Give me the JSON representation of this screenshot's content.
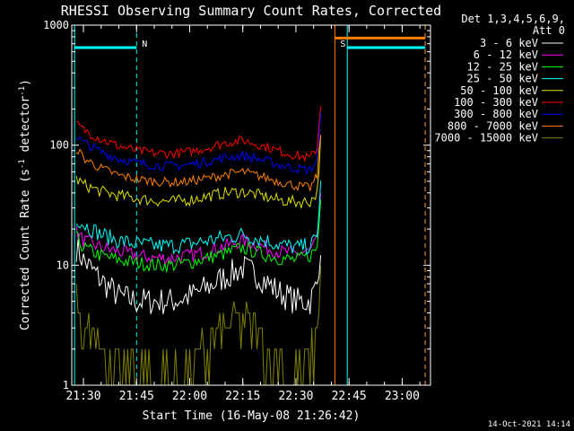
{
  "chart_data": {
    "type": "line",
    "title": "RHESSI Observing Summary Count Rates, Corrected",
    "xlabel": "Start Time (16-May-08 21:26:42)",
    "ylabel_main": "Corrected Count Rate (s",
    "ylabel_sup1": "-1",
    "ylabel_mid": " detector",
    "ylabel_sup2": "-1",
    "ylabel_end": ")",
    "y_scale": "log",
    "ylim": [
      1,
      1000
    ],
    "xlim": [
      "21:26:42",
      "23:08:00"
    ],
    "x_tick_labels": [
      "21:30",
      "21:45",
      "22:00",
      "22:15",
      "22:30",
      "22:45",
      "23:00"
    ],
    "y_tick_labels": [
      "1",
      "10",
      "100",
      "1000"
    ],
    "legend_header": [
      "Det 1,3,4,5,6,9,",
      "Att 0"
    ],
    "legend_placement": "right",
    "timestamp": "14-Oct-2021 14:14",
    "colors": {
      "axes": "#ffffff",
      "background": "#000000",
      "cyan": "#00ffff",
      "orange": "#ff8000"
    },
    "annotations": [
      {
        "text": "N",
        "time": "21:45",
        "color": "#00ffff"
      },
      {
        "text": "S",
        "time": "22:41",
        "color": "#ff8000"
      }
    ],
    "night_intervals": [
      {
        "start": "21:27:30",
        "end": "21:45",
        "level": 650,
        "color": "#00ffff"
      },
      {
        "start": "22:44:30",
        "end": "23:06:30",
        "level": 650,
        "color": "#00ffff"
      }
    ],
    "saa_interval": {
      "start": "22:41",
      "end": "23:06:30",
      "level": 780,
      "color": "#ff8000"
    },
    "series": [
      {
        "name": "3 - 6 keV",
        "color": "#ffffff",
        "x": [
          "21:28",
          "21:30",
          "21:35",
          "21:40",
          "21:45",
          "21:50",
          "21:55",
          "22:00",
          "22:05",
          "22:10",
          "22:15",
          "22:20",
          "22:25",
          "22:30",
          "22:34",
          "22:36",
          "22:37"
        ],
        "y": [
          14,
          11,
          7.5,
          5.5,
          5,
          5,
          5,
          5.5,
          6.5,
          8,
          9.5,
          8,
          6,
          5,
          5,
          7,
          15
        ]
      },
      {
        "name": "6 - 12 keV",
        "color": "#ff00ff",
        "x": [
          "21:28",
          "21:30",
          "21:35",
          "21:40",
          "21:45",
          "21:50",
          "21:55",
          "22:00",
          "22:05",
          "22:10",
          "22:15",
          "22:20",
          "22:25",
          "22:30",
          "22:34",
          "22:36",
          "22:37"
        ],
        "y": [
          19,
          16,
          14,
          13,
          12,
          11.5,
          11.5,
          12,
          13,
          14.5,
          16,
          14.5,
          13,
          12.5,
          13,
          16,
          40
        ]
      },
      {
        "name": "12 - 25 keV",
        "color": "#00ff00",
        "x": [
          "21:28",
          "21:30",
          "21:35",
          "21:40",
          "21:45",
          "21:50",
          "21:55",
          "22:00",
          "22:05",
          "22:10",
          "22:15",
          "22:20",
          "22:25",
          "22:30",
          "22:34",
          "22:36",
          "22:37"
        ],
        "y": [
          17,
          14,
          12,
          11,
          10.5,
          10,
          10,
          10.5,
          11.5,
          12.5,
          14,
          12.5,
          11.5,
          11,
          12,
          14,
          35
        ]
      },
      {
        "name": "25 - 50 keV",
        "color": "#00ffff",
        "x": [
          "21:28",
          "21:30",
          "21:35",
          "21:40",
          "21:45",
          "21:50",
          "21:55",
          "22:00",
          "22:05",
          "22:10",
          "22:15",
          "22:20",
          "22:25",
          "22:30",
          "22:34",
          "22:36",
          "22:37"
        ],
        "y": [
          25,
          22,
          18,
          16,
          15,
          14.5,
          14.5,
          15,
          16,
          17,
          18,
          16.5,
          15,
          14,
          14.5,
          17,
          50
        ]
      },
      {
        "name": "50 - 100 keV",
        "color": "#e0e000",
        "x": [
          "21:28",
          "21:30",
          "21:35",
          "21:40",
          "21:45",
          "21:50",
          "21:55",
          "22:00",
          "22:05",
          "22:10",
          "22:15",
          "22:20",
          "22:25",
          "22:30",
          "22:34",
          "22:36",
          "22:37"
        ],
        "y": [
          52,
          47,
          41,
          38,
          36,
          34.5,
          34,
          35,
          37.5,
          40,
          41,
          38,
          35,
          33.5,
          34,
          40,
          110
        ]
      },
      {
        "name": "100 - 300 keV",
        "color": "#ff0000",
        "x": [
          "21:28",
          "21:30",
          "21:35",
          "21:40",
          "21:45",
          "21:50",
          "21:55",
          "22:00",
          "22:05",
          "22:10",
          "22:15",
          "22:20",
          "22:25",
          "22:30",
          "22:34",
          "22:36",
          "22:37"
        ],
        "y": [
          150,
          135,
          112,
          98,
          90,
          86,
          85,
          88,
          95,
          105,
          110,
          100,
          90,
          82,
          78,
          95,
          220
        ]
      },
      {
        "name": "300 - 800 keV",
        "color": "#0000ff",
        "x": [
          "21:28",
          "21:30",
          "21:35",
          "21:40",
          "21:45",
          "21:50",
          "21:55",
          "22:00",
          "22:05",
          "22:10",
          "22:15",
          "22:20",
          "22:25",
          "22:30",
          "22:34",
          "22:36",
          "22:37"
        ],
        "y": [
          118,
          105,
          88,
          77,
          71,
          68,
          67,
          69,
          73,
          79,
          82,
          76,
          69,
          64,
          62,
          75,
          170
        ]
      },
      {
        "name": "800 - 7000 keV",
        "color": "#ff8000",
        "x": [
          "21:28",
          "21:30",
          "21:35",
          "21:40",
          "21:45",
          "21:50",
          "21:55",
          "22:00",
          "22:05",
          "22:10",
          "22:15",
          "22:20",
          "22:25",
          "22:30",
          "22:34",
          "22:36",
          "22:37"
        ],
        "y": [
          95,
          78,
          64,
          56,
          52,
          50,
          49,
          50,
          53,
          57,
          60,
          55,
          50,
          46,
          44,
          55,
          130
        ]
      },
      {
        "name": "7000 - 15000 keV",
        "color": "#808000",
        "x": [
          "21:28",
          "21:30",
          "21:35",
          "21:40",
          "21:45",
          "21:50",
          "21:55",
          "22:00",
          "22:05",
          "22:10",
          "22:15",
          "22:20",
          "22:25",
          "22:30",
          "22:34",
          "22:36",
          "22:37"
        ],
        "y": [
          5,
          3,
          2,
          1.5,
          1.5,
          1.3,
          1.3,
          1.5,
          2,
          3,
          3.5,
          2.5,
          1.5,
          1.3,
          1.5,
          3,
          9
        ]
      }
    ]
  }
}
